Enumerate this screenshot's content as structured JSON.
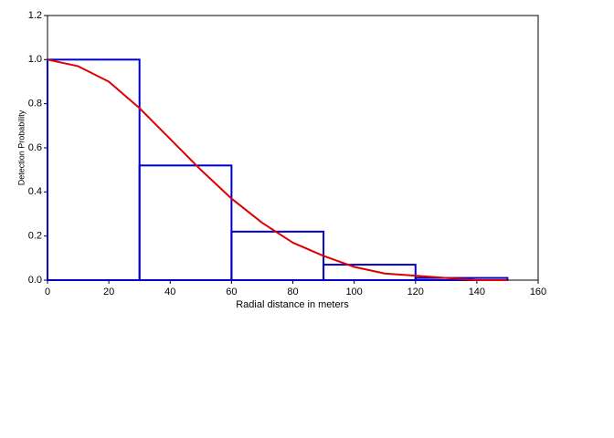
{
  "chart_data": {
    "type": "histogram",
    "bins": [
      0,
      30,
      60,
      90,
      120,
      150
    ],
    "values": [
      1.0,
      0.52,
      0.22,
      0.07,
      0.01
    ],
    "color": "#0000c8",
    "line": {
      "type": "line",
      "color": "#dd0000",
      "x": [
        0,
        10,
        20,
        30,
        40,
        50,
        60,
        70,
        80,
        90,
        100,
        110,
        120,
        130,
        140,
        150
      ],
      "values": [
        1.0,
        0.97,
        0.9,
        0.78,
        0.64,
        0.5,
        0.37,
        0.26,
        0.17,
        0.11,
        0.06,
        0.03,
        0.02,
        0.01,
        0.0,
        0.0
      ]
    },
    "xlabel": "Radial distance in meters",
    "ylabel": "Detection Probability",
    "xlim": [
      0,
      160
    ],
    "xticks": [
      0,
      20,
      40,
      60,
      80,
      100,
      120,
      140,
      160
    ],
    "ylim": [
      0,
      1.2
    ],
    "yticks": [
      {
        "value": 0,
        "label": "0.0"
      },
      {
        "value": 0.2,
        "label": "0.2"
      },
      {
        "value": 0.4,
        "label": "0.4"
      },
      {
        "value": 0.6,
        "label": "0.6"
      },
      {
        "value": 0.8,
        "label": "0.8"
      },
      {
        "value": 1.0,
        "label": "1.0"
      },
      {
        "value": 1.2,
        "label": "1.2"
      }
    ],
    "grid": false
  }
}
